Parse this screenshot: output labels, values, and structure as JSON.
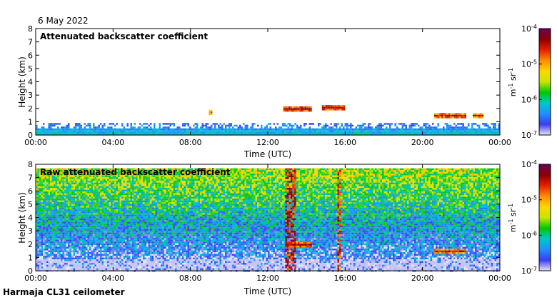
{
  "date_label": "6 May 2022",
  "footer_label": "Harmaja CL31 ceilometer",
  "colorscale": {
    "stops": [
      "#e6e6fa",
      "#3c3cf0",
      "#1e90ff",
      "#00c8c8",
      "#00c800",
      "#c8e600",
      "#ffd700",
      "#ff8c00",
      "#e61e00",
      "#8b0000",
      "#6a005a"
    ],
    "vmin_label": "10",
    "vmin_exp": "-7",
    "ticks": [
      {
        "base": "10",
        "exp": "-4"
      },
      {
        "base": "10",
        "exp": "-5"
      },
      {
        "base": "10",
        "exp": "-6"
      },
      {
        "base": "10",
        "exp": "-7"
      }
    ],
    "unit_parts": [
      "m",
      "-1",
      " sr",
      "-1"
    ],
    "range": [
      1e-07,
      0.0001
    ],
    "scale": "log"
  },
  "chart_data": [
    {
      "type": "heatmap",
      "title": "Attenuated backscatter coefficient",
      "xlabel": "Time (UTC)",
      "ylabel": "Height (km)",
      "x_ticks": [
        "00:00",
        "04:00",
        "08:00",
        "12:00",
        "16:00",
        "20:00",
        "00:00"
      ],
      "y_ticks": [
        "0",
        "1",
        "2",
        "3",
        "4",
        "5",
        "6",
        "7",
        "8"
      ],
      "xlim_hours": [
        0,
        24
      ],
      "ylim_km": [
        0,
        8
      ],
      "color_scale": "log",
      "features": [
        {
          "name": "boundary layer",
          "t_start": 0,
          "t_end": 24,
          "top_km": 0.9,
          "level": 0.3
        },
        {
          "name": "cloud layer",
          "t_start": 12.8,
          "t_end": 14.2,
          "height_km": 1.95,
          "level": 0.9
        },
        {
          "name": "cloud layer",
          "t_start": 14.8,
          "t_end": 16.0,
          "height_km": 2.05,
          "level": 0.9
        },
        {
          "name": "cloud layer",
          "t_start": 20.6,
          "t_end": 22.2,
          "height_km": 1.45,
          "level": 0.85
        },
        {
          "name": "cloud layer",
          "t_start": 22.6,
          "t_end": 23.1,
          "height_km": 1.45,
          "level": 0.8
        },
        {
          "name": "cloud layer",
          "t_start": 8.95,
          "t_end": 9.1,
          "height_km": 1.7,
          "level": 0.7
        }
      ]
    },
    {
      "type": "heatmap",
      "title": "Raw attenuated backscatter coefficient",
      "xlabel": "Time (UTC)",
      "ylabel": "Height (km)",
      "x_ticks": [
        "00:00",
        "04:00",
        "08:00",
        "12:00",
        "16:00",
        "20:00",
        "00:00"
      ],
      "y_ticks": [
        "0",
        "1",
        "2",
        "3",
        "4",
        "5",
        "6",
        "7",
        "8"
      ],
      "xlim_hours": [
        0,
        24
      ],
      "ylim_km": [
        0,
        8
      ],
      "color_scale": "log",
      "features": [
        {
          "name": "noise field",
          "t_start": 0,
          "t_end": 24,
          "top_km": 7.7,
          "level": 0.55
        },
        {
          "name": "precipitation column",
          "t_start": 12.9,
          "t_end": 13.4,
          "top_km": 7.7,
          "level": 0.85
        },
        {
          "name": "precipitation column",
          "t_start": 15.6,
          "t_end": 15.75,
          "top_km": 7.7,
          "level": 0.8
        },
        {
          "name": "cloud layer",
          "t_start": 12.9,
          "t_end": 14.2,
          "height_km": 1.95,
          "level": 0.9
        },
        {
          "name": "cloud layer",
          "t_start": 20.6,
          "t_end": 22.2,
          "height_km": 1.45,
          "level": 0.85
        }
      ]
    }
  ]
}
